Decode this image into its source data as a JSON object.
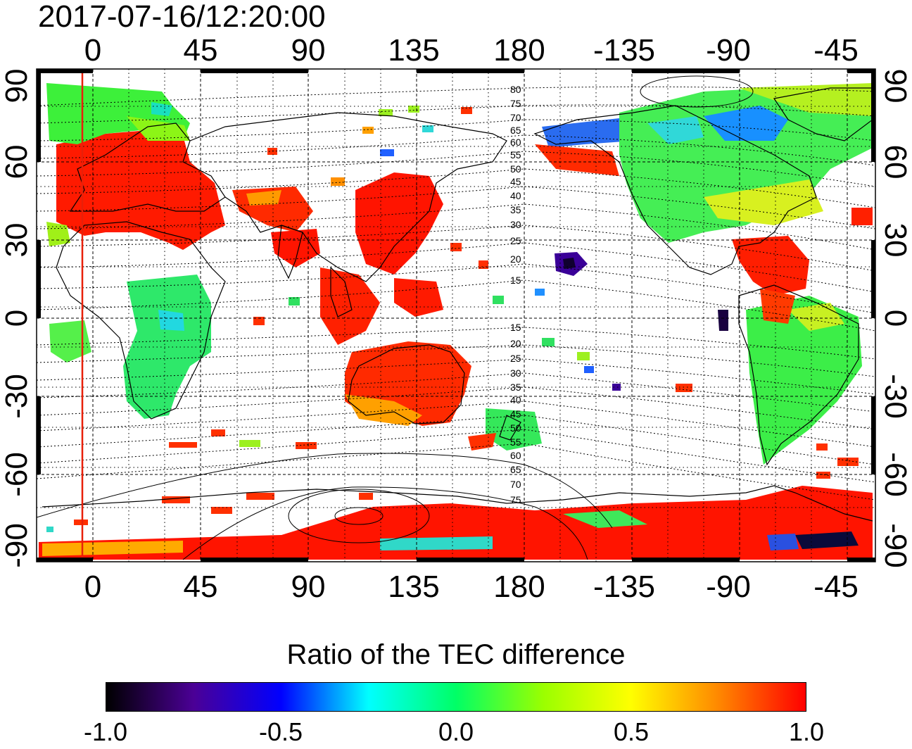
{
  "timestamp": "2017-07-16/12:20:00",
  "top_lon_ticks": [
    "0",
    "45",
    "90",
    "135",
    "180",
    "-135",
    "-90",
    "-45"
  ],
  "bottom_lon_ticks": [
    "0",
    "45",
    "90",
    "135",
    "180",
    "-135",
    "-90",
    "-45"
  ],
  "left_lat_ticks": [
    "90",
    "60",
    "30",
    "0",
    "-30",
    "-60",
    "-90"
  ],
  "right_lat_ticks": [
    "90",
    "60",
    "30",
    "0",
    "-30",
    "-60",
    "-90"
  ],
  "contour_labels_north": [
    "80",
    "75",
    "70",
    "65",
    "60",
    "55",
    "50",
    "45",
    "40",
    "35",
    "30",
    "25",
    "20",
    "15"
  ],
  "contour_labels_south": [
    "15",
    "20",
    "25",
    "30",
    "35",
    "40",
    "45",
    "50",
    "55",
    "60",
    "65",
    "70",
    "75"
  ],
  "colorbar": {
    "title": "Ratio of the TEC difference",
    "ticks": [
      "-1.0",
      "-0.5",
      "0.0",
      "0.5",
      "1.0"
    ],
    "min": -1.0,
    "max": 1.0,
    "stops": [
      "#000000",
      "#4b0096",
      "#0000ff",
      "#00ffff",
      "#00ff66",
      "#9bff00",
      "#ffff00",
      "#ff8800",
      "#ff0000"
    ]
  },
  "map": {
    "lon_range": [
      -27,
      333
    ],
    "lat_range": [
      -95,
      95
    ],
    "grid_lon_step": 15,
    "grid_lat_step": 15,
    "terminator_lon": -5
  }
}
